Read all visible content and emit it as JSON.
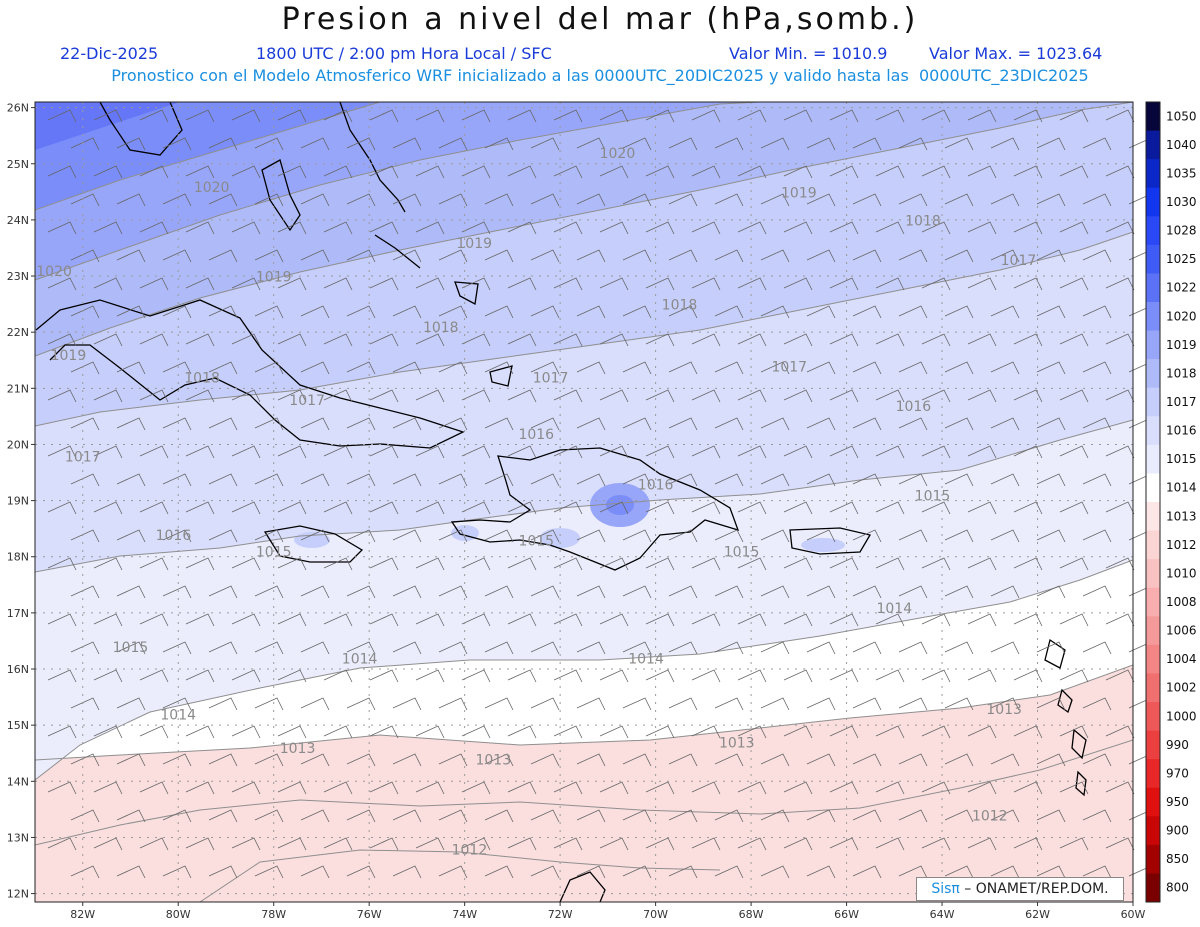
{
  "header": {
    "title": "Presion a nivel del mar (hPa,somb.)",
    "date": "22-Dic-2025",
    "time_info": "1800 UTC / 2:00 pm Hora Local / SFC",
    "min_label": "Valor Min. = 1010.9",
    "max_label": "Valor Max. = 1023.64",
    "model_info": "Pronostico con el Modelo Atmosferico WRF inicializado a las 0000UTC_20DIC2025 y valido hasta las  0000UTC_23DIC2025"
  },
  "axes": {
    "lat_labels": [
      "26N",
      "25N",
      "24N",
      "23N",
      "22N",
      "21N",
      "20N",
      "19N",
      "18N",
      "17N",
      "16N",
      "15N",
      "14N",
      "13N",
      "12N"
    ],
    "lon_labels": [
      "82W",
      "80W",
      "78W",
      "76W",
      "74W",
      "72W",
      "70W",
      "68W",
      "66W",
      "64W",
      "62W",
      "60W"
    ]
  },
  "colorbar": {
    "labels": [
      "1050",
      "1040",
      "1035",
      "1030",
      "1028",
      "1025",
      "1022",
      "1020",
      "1019",
      "1018",
      "1017",
      "1016",
      "1015",
      "1014",
      "1013",
      "1012",
      "1010",
      "1008",
      "1006",
      "1004",
      "1002",
      "1000",
      "990",
      "970",
      "950",
      "900",
      "850",
      "800"
    ],
    "colors": [
      "#06063a",
      "#0a1a9c",
      "#0b27c8",
      "#1236ee",
      "#2a48f5",
      "#3f5bf6",
      "#5b72f6",
      "#7a8df8",
      "#98a6f9",
      "#afbbf9",
      "#c6cefb",
      "#d9defc",
      "#e9ecfd",
      "#ffffff",
      "#fde6e6",
      "#fbd4d4",
      "#f9c2c2",
      "#f8aeae",
      "#f59a9a",
      "#f38585",
      "#f06f6f",
      "#ee5858",
      "#ec4040",
      "#e82828",
      "#e01010",
      "#c80606",
      "#a30000",
      "#7a0000"
    ]
  },
  "isobar_labels": [
    {
      "text": "1020",
      "lon": -70.8,
      "lat": 25.1
    },
    {
      "text": "1020",
      "lon": -79.3,
      "lat": 24.5
    },
    {
      "text": "1020",
      "lon": -82.6,
      "lat": 23.0
    },
    {
      "text": "1019",
      "lon": -73.8,
      "lat": 23.5
    },
    {
      "text": "1019",
      "lon": -67.0,
      "lat": 24.4
    },
    {
      "text": "1019",
      "lon": -78.0,
      "lat": 22.9
    },
    {
      "text": "1019",
      "lon": -82.3,
      "lat": 21.5
    },
    {
      "text": "1018",
      "lon": -74.5,
      "lat": 22.0
    },
    {
      "text": "1018",
      "lon": -69.5,
      "lat": 22.4
    },
    {
      "text": "1018",
      "lon": -64.4,
      "lat": 23.9
    },
    {
      "text": "1018",
      "lon": -79.5,
      "lat": 21.1
    },
    {
      "text": "1017",
      "lon": -62.4,
      "lat": 23.2
    },
    {
      "text": "1017",
      "lon": -67.2,
      "lat": 21.3
    },
    {
      "text": "1017",
      "lon": -77.3,
      "lat": 20.7
    },
    {
      "text": "1017",
      "lon": -72.2,
      "lat": 21.1
    },
    {
      "text": "1017",
      "lon": -82.0,
      "lat": 19.7
    },
    {
      "text": "1016",
      "lon": -64.6,
      "lat": 20.6
    },
    {
      "text": "1016",
      "lon": -72.5,
      "lat": 20.1
    },
    {
      "text": "1016",
      "lon": -80.1,
      "lat": 18.3
    },
    {
      "text": "1016",
      "lon": -70.0,
      "lat": 19.2
    },
    {
      "text": "1015",
      "lon": -64.2,
      "lat": 19.0
    },
    {
      "text": "1015",
      "lon": -78.0,
      "lat": 18.0
    },
    {
      "text": "1015",
      "lon": -72.5,
      "lat": 18.2
    },
    {
      "text": "1015",
      "lon": -68.2,
      "lat": 18.0
    },
    {
      "text": "1015",
      "lon": -81.0,
      "lat": 16.3
    },
    {
      "text": "1014",
      "lon": -65.0,
      "lat": 17.0
    },
    {
      "text": "1014",
      "lon": -76.2,
      "lat": 16.1
    },
    {
      "text": "1014",
      "lon": -70.2,
      "lat": 16.1
    },
    {
      "text": "1014",
      "lon": -80.0,
      "lat": 15.1
    },
    {
      "text": "1013",
      "lon": -62.7,
      "lat": 15.2
    },
    {
      "text": "1013",
      "lon": -68.3,
      "lat": 14.6
    },
    {
      "text": "1013",
      "lon": -73.4,
      "lat": 14.3
    },
    {
      "text": "1013",
      "lon": -77.5,
      "lat": 14.5
    },
    {
      "text": "1012",
      "lon": -63.0,
      "lat": 13.3
    },
    {
      "text": "1012",
      "lon": -73.9,
      "lat": 12.7
    }
  ],
  "credit": {
    "logo_text": "Sisπ",
    "org_text": " – ONAMET/REP.DOM."
  }
}
